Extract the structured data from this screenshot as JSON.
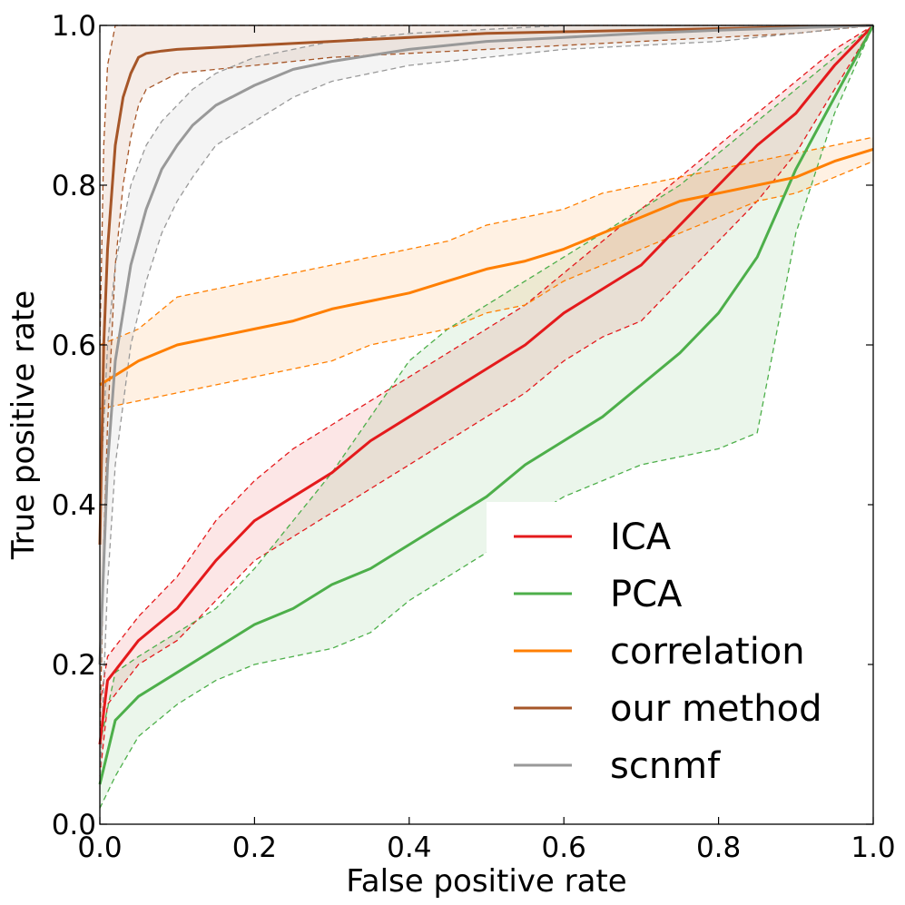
{
  "chart_data": {
    "type": "line",
    "title": "",
    "xlabel": "False positive rate",
    "ylabel": "True positive rate",
    "xlim": [
      0,
      1
    ],
    "ylim": [
      0,
      1
    ],
    "xticks": [
      "0.0",
      "0.2",
      "0.4",
      "0.6",
      "0.8",
      "1.0"
    ],
    "yticks": [
      "0.0",
      "0.2",
      "0.4",
      "0.6",
      "0.8",
      "1.0"
    ],
    "xtick_values": [
      0,
      0.2,
      0.4,
      0.6,
      0.8,
      1.0
    ],
    "ytick_values": [
      0,
      0.2,
      0.4,
      0.6,
      0.8,
      1.0
    ],
    "legend_position": "lower-right",
    "series": [
      {
        "name": "ICA",
        "color": "#e41a1c",
        "x": [
          0,
          0.01,
          0.05,
          0.1,
          0.15,
          0.2,
          0.25,
          0.3,
          0.35,
          0.4,
          0.45,
          0.5,
          0.55,
          0.6,
          0.65,
          0.7,
          0.75,
          0.8,
          0.85,
          0.9,
          0.95,
          1.0
        ],
        "y": [
          0.1,
          0.18,
          0.23,
          0.27,
          0.33,
          0.38,
          0.41,
          0.44,
          0.48,
          0.51,
          0.54,
          0.57,
          0.6,
          0.64,
          0.67,
          0.7,
          0.75,
          0.8,
          0.85,
          0.89,
          0.95,
          1.0
        ],
        "upper": [
          0.15,
          0.21,
          0.26,
          0.31,
          0.38,
          0.43,
          0.47,
          0.5,
          0.53,
          0.56,
          0.59,
          0.62,
          0.65,
          0.69,
          0.73,
          0.77,
          0.81,
          0.85,
          0.89,
          0.93,
          0.97,
          1.0
        ],
        "lower": [
          0.06,
          0.15,
          0.2,
          0.23,
          0.28,
          0.33,
          0.36,
          0.39,
          0.42,
          0.45,
          0.48,
          0.51,
          0.54,
          0.58,
          0.61,
          0.63,
          0.68,
          0.73,
          0.78,
          0.84,
          0.92,
          1.0
        ]
      },
      {
        "name": "PCA",
        "color": "#4daf4a",
        "x": [
          0,
          0.02,
          0.05,
          0.1,
          0.15,
          0.2,
          0.25,
          0.3,
          0.35,
          0.4,
          0.45,
          0.5,
          0.55,
          0.6,
          0.65,
          0.7,
          0.75,
          0.8,
          0.85,
          0.9,
          0.95,
          1.0
        ],
        "y": [
          0.05,
          0.13,
          0.16,
          0.19,
          0.22,
          0.25,
          0.27,
          0.3,
          0.32,
          0.35,
          0.38,
          0.41,
          0.45,
          0.48,
          0.51,
          0.55,
          0.59,
          0.64,
          0.71,
          0.82,
          0.91,
          1.0
        ],
        "upper": [
          0.1,
          0.19,
          0.21,
          0.24,
          0.27,
          0.32,
          0.38,
          0.44,
          0.51,
          0.58,
          0.62,
          0.65,
          0.68,
          0.71,
          0.74,
          0.77,
          0.8,
          0.84,
          0.88,
          0.92,
          0.96,
          1.0
        ],
        "lower": [
          0.02,
          0.06,
          0.11,
          0.15,
          0.18,
          0.2,
          0.21,
          0.22,
          0.24,
          0.28,
          0.31,
          0.34,
          0.38,
          0.41,
          0.43,
          0.45,
          0.46,
          0.47,
          0.49,
          0.74,
          0.89,
          1.0
        ]
      },
      {
        "name": "correlation",
        "color": "#ff7f00",
        "x": [
          0,
          0.05,
          0.1,
          0.15,
          0.2,
          0.25,
          0.3,
          0.35,
          0.4,
          0.45,
          0.5,
          0.55,
          0.6,
          0.65,
          0.7,
          0.75,
          0.8,
          0.85,
          0.9,
          0.95,
          1.0
        ],
        "y": [
          0.55,
          0.58,
          0.6,
          0.61,
          0.62,
          0.63,
          0.645,
          0.655,
          0.665,
          0.68,
          0.695,
          0.705,
          0.72,
          0.74,
          0.76,
          0.78,
          0.79,
          0.8,
          0.81,
          0.83,
          0.845
        ],
        "upper": [
          0.6,
          0.62,
          0.66,
          0.67,
          0.68,
          0.69,
          0.7,
          0.71,
          0.72,
          0.73,
          0.75,
          0.76,
          0.77,
          0.79,
          0.8,
          0.81,
          0.82,
          0.83,
          0.84,
          0.85,
          0.86
        ],
        "lower": [
          0.52,
          0.53,
          0.54,
          0.55,
          0.56,
          0.57,
          0.58,
          0.6,
          0.61,
          0.62,
          0.64,
          0.65,
          0.68,
          0.7,
          0.72,
          0.74,
          0.76,
          0.78,
          0.79,
          0.81,
          0.83
        ]
      },
      {
        "name": "our method",
        "color": "#a65628",
        "x": [
          0,
          0.005,
          0.01,
          0.02,
          0.03,
          0.04,
          0.05,
          0.06,
          0.08,
          0.1,
          0.2,
          0.3,
          0.4,
          0.5,
          0.6,
          0.7,
          0.8,
          0.9,
          1.0
        ],
        "y": [
          0.35,
          0.6,
          0.72,
          0.85,
          0.91,
          0.94,
          0.96,
          0.965,
          0.968,
          0.97,
          0.975,
          0.98,
          0.985,
          0.99,
          0.992,
          0.994,
          0.996,
          0.998,
          1.0
        ],
        "upper": [
          0.6,
          0.85,
          0.95,
          1.0,
          1.0,
          1.0,
          1.0,
          1.0,
          1.0,
          1.0,
          1.0,
          1.0,
          1.0,
          1.0,
          1.0,
          1.0,
          1.0,
          1.0,
          1.0
        ],
        "lower": [
          0.1,
          0.35,
          0.5,
          0.7,
          0.8,
          0.86,
          0.9,
          0.92,
          0.93,
          0.94,
          0.95,
          0.96,
          0.965,
          0.97,
          0.975,
          0.98,
          0.985,
          0.99,
          1.0
        ]
      },
      {
        "name": "scnmf",
        "color": "#999999",
        "x": [
          0,
          0.01,
          0.02,
          0.04,
          0.06,
          0.08,
          0.1,
          0.12,
          0.15,
          0.2,
          0.25,
          0.3,
          0.4,
          0.5,
          0.6,
          0.7,
          0.8,
          0.9,
          1.0
        ],
        "y": [
          0.2,
          0.45,
          0.58,
          0.7,
          0.77,
          0.82,
          0.85,
          0.875,
          0.9,
          0.925,
          0.945,
          0.955,
          0.97,
          0.98,
          0.985,
          0.99,
          0.994,
          0.997,
          1.0
        ],
        "upper": [
          0.4,
          0.6,
          0.7,
          0.8,
          0.85,
          0.88,
          0.9,
          0.92,
          0.94,
          0.96,
          0.97,
          0.98,
          0.99,
          0.995,
          1.0,
          1.0,
          1.0,
          1.0,
          1.0
        ],
        "lower": [
          0.05,
          0.3,
          0.45,
          0.6,
          0.68,
          0.74,
          0.78,
          0.81,
          0.85,
          0.88,
          0.91,
          0.93,
          0.95,
          0.96,
          0.97,
          0.975,
          0.98,
          0.99,
          1.0
        ]
      }
    ]
  }
}
